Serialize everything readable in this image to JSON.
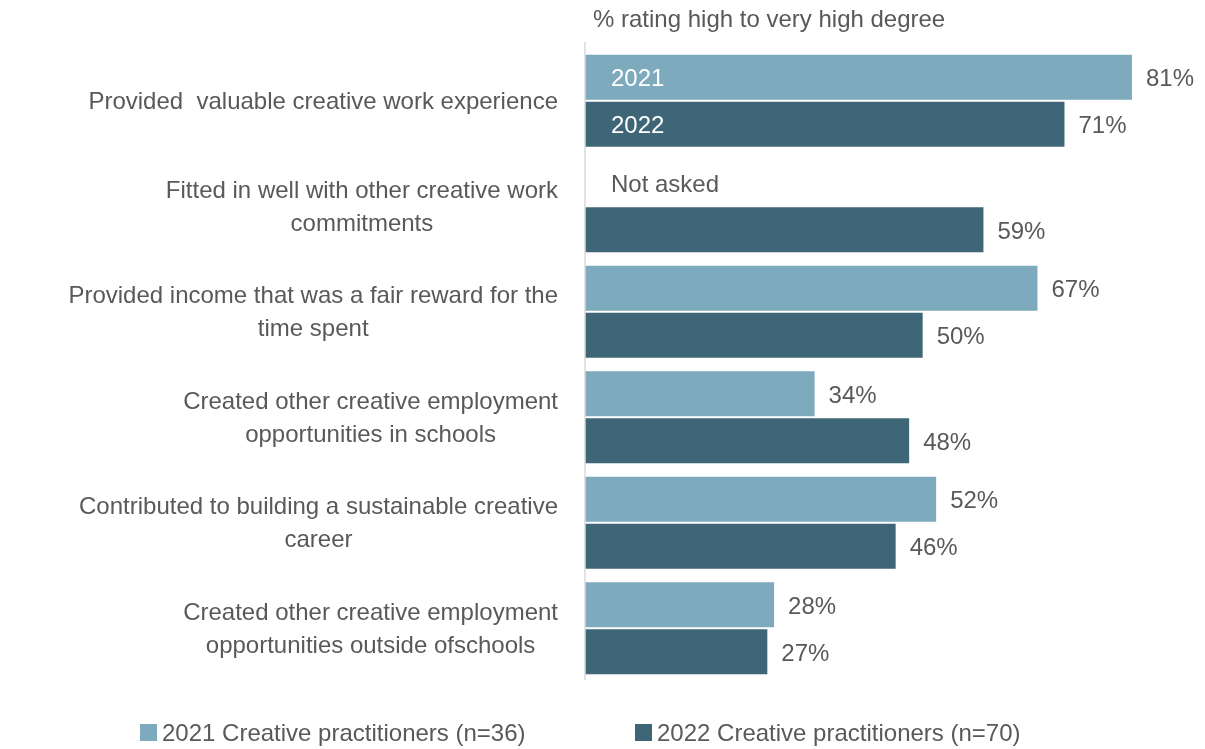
{
  "chart_data": {
    "type": "bar",
    "orientation": "horizontal",
    "xlabel": "% rating high to very high degree",
    "categories": [
      "Provided  valuable creative work experience",
      "Fitted in well with other creative work commitments",
      "Provided income that was a fair reward for the time spent",
      "Created other creative employment opportunities in schools",
      "Contributed to building a sustainable creative career",
      "Created other creative employment opportunities outside ofschools"
    ],
    "series": [
      {
        "name": "2021 Creative practitioners (n=36)",
        "color": "#7eaabd",
        "values": [
          81,
          null,
          67,
          34,
          52,
          28
        ],
        "value_labels": [
          "81%",
          "Not asked",
          "67%",
          "34%",
          "52%",
          "28%"
        ]
      },
      {
        "name": "2022 Creative practitioners (n=70)",
        "color": "#3e6677",
        "values": [
          71,
          59,
          50,
          48,
          46,
          27
        ],
        "value_labels": [
          "71%",
          "59%",
          "50%",
          "48%",
          "46%",
          "27%"
        ]
      }
    ],
    "annotations": [
      "2021",
      "2022"
    ],
    "legend": "bottom"
  }
}
